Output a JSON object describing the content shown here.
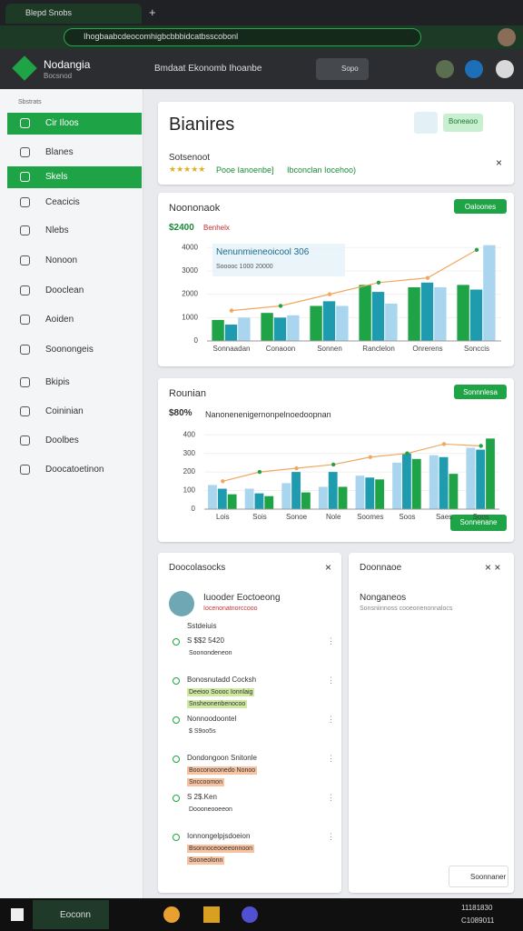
{
  "browser": {
    "tab": "Blepd Snobs",
    "url": "Ihogbaabcdeocomhigbcbbbidcatbsscobonl"
  },
  "header": {
    "brand": "Nodangia",
    "brand_sub": "Bocsnod",
    "search": "Bmdaat Ekonomb Ihoanbe",
    "button": "Sopo"
  },
  "sidebar": {
    "section": "Sbstrats",
    "items": [
      "Cir Iloos",
      "Blanes",
      "Skels",
      "Ceacicis",
      "Nlebs",
      "Nonoon",
      "Dooclean",
      "Aoiden",
      "Soonongeis",
      "Bkipis",
      "Coininian",
      "Doolbes",
      "Doocatoetinon"
    ]
  },
  "summary": {
    "title": "Bianires",
    "button": "Boneaoo",
    "label": "Sotsenoot",
    "rating": "★★★★★",
    "link": "Pooe Ianoenbe]",
    "link2": "Ibconclan Iocehoo)"
  },
  "chart_data": [
    {
      "type": "bar",
      "title": "Noononaok",
      "value": "$2400",
      "subtitle": "Benhelx",
      "button": "Oaloones",
      "annotation": "Nenunmieneoicool 306",
      "annotation2": "Sooooc 1000 20000",
      "categories": [
        "Sonnaadan",
        "Conaoon",
        "Sonnen",
        "Ranclelon",
        "Onrerens",
        "Sonccis"
      ],
      "series": [
        {
          "color": "#1ea446",
          "values": [
            900,
            1200,
            1500,
            2400,
            2300,
            2400
          ]
        },
        {
          "color": "#1f9bb0",
          "values": [
            700,
            1000,
            1700,
            2100,
            2500,
            2200
          ]
        },
        {
          "color": "#a9d5ee",
          "values": [
            1000,
            1100,
            1500,
            1600,
            2300,
            4100
          ]
        },
        {
          "type": "line",
          "color": "#f0a860",
          "values": [
            1300,
            1500,
            2000,
            2500,
            2700,
            3900
          ]
        }
      ],
      "ylim": [
        0,
        4400
      ],
      "yticks": [
        0,
        1000,
        2000,
        3000,
        4000
      ],
      "grid": true
    },
    {
      "type": "bar",
      "title": "Rounian",
      "value": "$80%",
      "subtitle": "Nanonenenigernonpelnoedoopnan",
      "button": "Sonnnlesa",
      "button2": "Sonnenane",
      "categories": [
        "Lois",
        "Sois",
        "Sonoe",
        "Nole",
        "Soomes",
        "Soos",
        "Saes",
        "Soos"
      ],
      "series": [
        {
          "color": "#a9d5ee",
          "values": [
            130,
            110,
            140,
            120,
            180,
            250,
            290,
            330
          ]
        },
        {
          "color": "#1f9bb0",
          "values": [
            110,
            85,
            200,
            200,
            170,
            300,
            280,
            320
          ]
        },
        {
          "color": "#1ea446",
          "values": [
            80,
            70,
            90,
            120,
            160,
            270,
            190,
            380
          ]
        },
        {
          "type": "line",
          "color": "#f0a860",
          "values": [
            150,
            200,
            220,
            240,
            280,
            300,
            350,
            340
          ]
        }
      ],
      "ylim": [
        0,
        450
      ],
      "yticks": [
        0,
        100,
        200,
        300,
        400
      ],
      "grid": true
    }
  ],
  "activity": {
    "title": "Doocolasocks",
    "user": "Iuooder Eoctoeong",
    "user_sub": "Iocenonatnorccooo",
    "meta": "Sstdeiuis",
    "items": [
      {
        "title": "S $$2 5420",
        "detail": "Soonondeneon"
      },
      {
        "title": "Bonosnutadd Cocksh",
        "detail": "Deeioo Soooc Ionnlaig",
        "tag": "Snsheonenbenocoo"
      },
      {
        "title": "Nonnoodoontel",
        "detail": "$ S9oo5s"
      },
      {
        "title": "Dondongoon Snitonle",
        "detail": "Booconoconedo Nonoo",
        "tag": "Snccoomon"
      },
      {
        "title": "S 2$.Ken",
        "detail": "Doooneooeeon"
      },
      {
        "title": "Ionnongelpjsdoeion",
        "detail": "Bsonnoceooeeonnoon",
        "tag": "Sooneolonn"
      }
    ]
  },
  "notes": {
    "title": "Doonnaoe",
    "heading": "Nonganeos",
    "sub": "Sonsniinnoss cooeonenonnalocs",
    "button": "Soonnaner"
  },
  "taskbar": {
    "app": "Eoconn",
    "time": "11181830",
    "date": "C1089011"
  }
}
